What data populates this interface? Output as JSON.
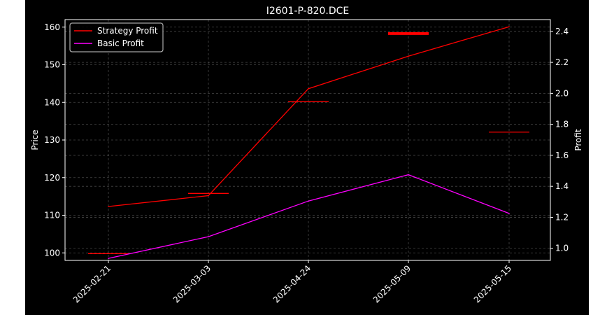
{
  "chart_data": {
    "type": "line",
    "title": "I2601-P-820.DCE",
    "xlabel": "",
    "ylabel_left": "Price",
    "ylabel_right": "Profit",
    "categories": [
      "2025-02-21",
      "2025-03-03",
      "2025-04-24",
      "2025-05-09",
      "2025-05-15"
    ],
    "ylim_left": [
      98,
      162
    ],
    "yticks_left": [
      100,
      110,
      120,
      130,
      140,
      150,
      160
    ],
    "ylim_right": [
      0.922,
      2.476
    ],
    "yticks_right": [
      1.0,
      1.2,
      1.4,
      1.6,
      1.8,
      2.0,
      2.2,
      2.4
    ],
    "price_markers": [
      {
        "category": "2025-02-21",
        "value": 99.8,
        "width": 1
      },
      {
        "category": "2025-03-03",
        "value": 115.8,
        "width": 1
      },
      {
        "category": "2025-04-24",
        "value": 140.2,
        "width": 1
      },
      {
        "category": "2025-05-09",
        "value": 158.3,
        "width": 3
      },
      {
        "category": "2025-05-15",
        "value": 132.1,
        "width": 1
      }
    ],
    "series": [
      {
        "name": "Strategy Profit",
        "color": "#ff0000",
        "axis": "right",
        "values": [
          1.27,
          1.34,
          2.03,
          2.24,
          2.43
        ]
      },
      {
        "name": "Basic Profit",
        "color": "#ff00ff",
        "axis": "right",
        "values": [
          0.935,
          1.075,
          1.305,
          1.475,
          1.225
        ]
      }
    ],
    "grid": true,
    "legend_position": "top-left"
  }
}
